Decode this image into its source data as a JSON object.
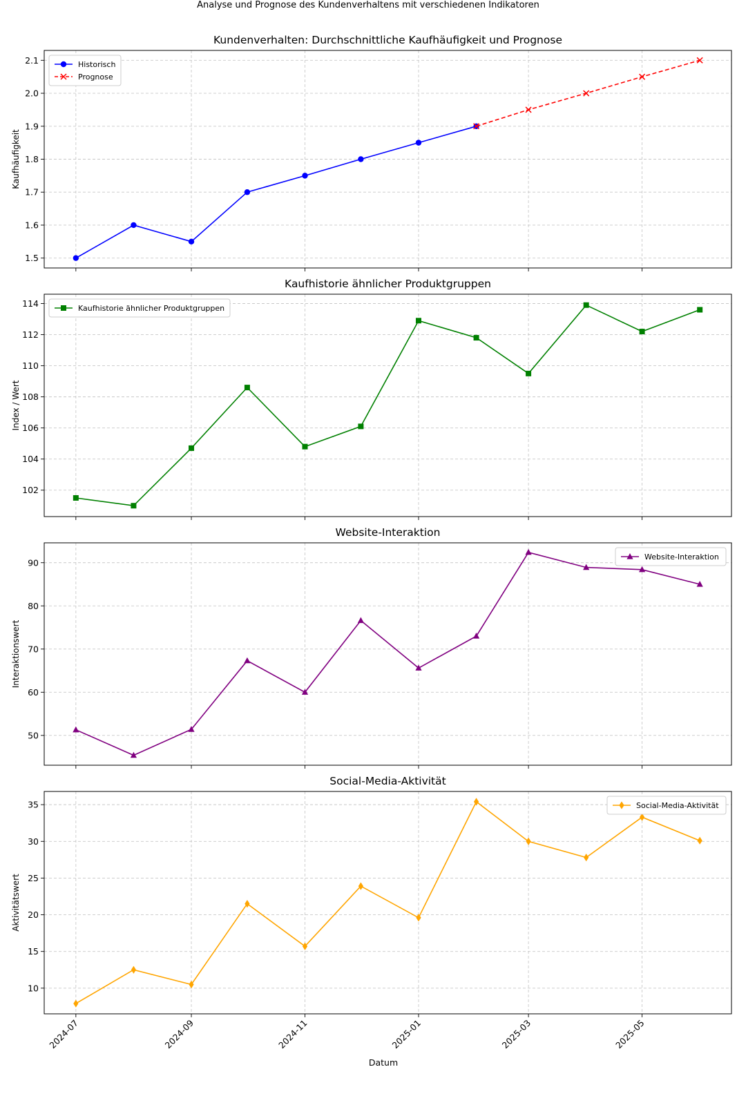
{
  "suptitle": "Analyse und Prognose des Kundenverhaltens mit verschiedenen Indikatoren",
  "xlabel": "Datum",
  "xticks": [
    "2024-07",
    "2024-09",
    "2024-11",
    "2025-01",
    "2025-03",
    "2025-05"
  ],
  "chart_data": [
    {
      "type": "line",
      "title": "Kundenverhalten: Durchschnittliche Kaufhäufigkeit und Prognose",
      "ylabel": "Kaufhäufigkeit",
      "xlim": [
        "2024-06-14",
        "2025-06-18"
      ],
      "ylim": [
        1.47,
        2.13
      ],
      "yticks": [
        "1.5",
        "1.6",
        "1.7",
        "1.8",
        "1.9",
        "2.0",
        "2.1"
      ],
      "grid": true,
      "legend": "top-left",
      "series": [
        {
          "name": "Historisch",
          "color": "#0000ff",
          "marker": "circle",
          "dashed": false,
          "x": [
            "2024-07-01",
            "2024-08-01",
            "2024-09-01",
            "2024-10-01",
            "2024-11-01",
            "2024-12-01",
            "2025-01-01",
            "2025-02-01"
          ],
          "values": [
            1.5,
            1.6,
            1.55,
            1.7,
            1.75,
            1.8,
            1.85,
            1.9
          ]
        },
        {
          "name": "Prognose",
          "color": "#ff0000",
          "marker": "x",
          "dashed": true,
          "x": [
            "2025-02-01",
            "2025-03-01",
            "2025-04-01",
            "2025-05-01",
            "2025-06-01"
          ],
          "values": [
            1.9,
            1.95,
            2.0,
            2.05,
            2.1
          ]
        }
      ]
    },
    {
      "type": "line",
      "title": "Kaufhistorie ähnlicher Produktgruppen",
      "ylabel": "Index / Wert",
      "xlim": [
        "2024-06-14",
        "2025-06-18"
      ],
      "ylim": [
        100.3,
        114.6
      ],
      "yticks": [
        "102",
        "104",
        "106",
        "108",
        "110",
        "112",
        "114"
      ],
      "grid": true,
      "legend": "top-left",
      "series": [
        {
          "name": "Kaufhistorie ähnlicher Produktgruppen",
          "color": "#008000",
          "marker": "square",
          "dashed": false,
          "x": [
            "2024-07-01",
            "2024-08-01",
            "2024-09-01",
            "2024-10-01",
            "2024-11-01",
            "2024-12-01",
            "2025-01-01",
            "2025-02-01",
            "2025-03-01",
            "2025-04-01",
            "2025-05-01",
            "2025-06-01"
          ],
          "values": [
            101.5,
            101.0,
            104.7,
            108.6,
            104.8,
            106.1,
            112.9,
            111.8,
            109.5,
            113.9,
            112.2,
            113.6
          ]
        }
      ]
    },
    {
      "type": "line",
      "title": "Website-Interaktion",
      "ylabel": "Interaktionswert",
      "xlim": [
        "2024-06-14",
        "2025-06-18"
      ],
      "ylim": [
        43.1,
        94.6
      ],
      "yticks": [
        "50",
        "60",
        "70",
        "80",
        "90"
      ],
      "grid": true,
      "legend": "top-right",
      "series": [
        {
          "name": "Website-Interaktion",
          "color": "#800080",
          "marker": "triangle",
          "dashed": false,
          "x": [
            "2024-07-01",
            "2024-08-01",
            "2024-09-01",
            "2024-10-01",
            "2024-11-01",
            "2024-12-01",
            "2025-01-01",
            "2025-02-01",
            "2025-03-01",
            "2025-04-01",
            "2025-05-01",
            "2025-06-01"
          ],
          "values": [
            51.3,
            45.4,
            51.4,
            67.3,
            60.0,
            76.6,
            65.6,
            73.0,
            92.4,
            88.9,
            88.4,
            85.0
          ]
        }
      ]
    },
    {
      "type": "line",
      "title": "Social-Media-Aktivität",
      "ylabel": "Aktivitätswert",
      "xlim": [
        "2024-06-14",
        "2025-06-18"
      ],
      "ylim": [
        6.5,
        36.8
      ],
      "yticks": [
        "10",
        "15",
        "20",
        "25",
        "30",
        "35"
      ],
      "grid": true,
      "legend": "top-right",
      "series": [
        {
          "name": "Social-Media-Aktivität",
          "color": "#ffa500",
          "marker": "diamond",
          "dashed": false,
          "x": [
            "2024-07-01",
            "2024-08-01",
            "2024-09-01",
            "2024-10-01",
            "2024-11-01",
            "2024-12-01",
            "2025-01-01",
            "2025-02-01",
            "2025-03-01",
            "2025-04-01",
            "2025-05-01",
            "2025-06-01"
          ],
          "values": [
            7.9,
            12.5,
            10.5,
            21.5,
            15.7,
            23.9,
            19.6,
            35.4,
            30.0,
            27.8,
            33.3,
            30.1
          ]
        }
      ]
    }
  ]
}
